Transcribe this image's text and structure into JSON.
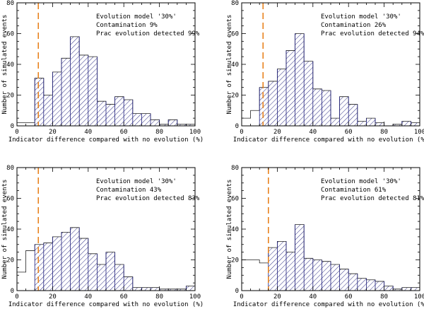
{
  "figure": {
    "xlabel": "Indicator difference compared with no evolution (%)",
    "ylabel": "Number of simulated events"
  },
  "chart_data": [
    {
      "type": "histogram",
      "annotation": [
        "Evolution model '30%'",
        "Contamination 9%",
        "Prac evolution detected 99%"
      ],
      "xlim": [
        0,
        100
      ],
      "ylim": [
        0,
        80
      ],
      "xticks": [
        0,
        20,
        40,
        60,
        80,
        100
      ],
      "yticks": [
        0,
        20,
        40,
        60,
        80
      ],
      "threshold_x": 12,
      "bin_width": 5,
      "bins": [
        0,
        5,
        10,
        15,
        20,
        25,
        30,
        35,
        40,
        45,
        50,
        55,
        60,
        65,
        70,
        75,
        80,
        85,
        90,
        95
      ],
      "values": [
        2,
        2,
        31,
        20,
        35,
        44,
        58,
        46,
        45,
        16,
        14,
        19,
        17,
        8,
        8,
        4,
        1,
        4,
        1,
        1
      ],
      "hatched_from_bin": 2,
      "grid": false
    },
    {
      "type": "histogram",
      "annotation": [
        "Evolution model '30%'",
        "Contamination 26%",
        "Prac evolution detected 94%"
      ],
      "xlim": [
        0,
        100
      ],
      "ylim": [
        0,
        80
      ],
      "xticks": [
        0,
        20,
        40,
        60,
        80,
        100
      ],
      "yticks": [
        0,
        20,
        40,
        60,
        80
      ],
      "threshold_x": 12,
      "bin_width": 5,
      "bins": [
        0,
        5,
        10,
        15,
        20,
        25,
        30,
        35,
        40,
        45,
        50,
        55,
        60,
        65,
        70,
        75,
        80,
        85,
        90,
        95
      ],
      "values": [
        5,
        10,
        25,
        29,
        37,
        49,
        60,
        42,
        24,
        23,
        5,
        19,
        14,
        3,
        5,
        2,
        0,
        1,
        3,
        2
      ],
      "hatched_from_bin": 2,
      "grid": false
    },
    {
      "type": "histogram",
      "annotation": [
        "Evolution model '30%'",
        "Contamination 43%",
        "Prac evolution detected 83%"
      ],
      "xlim": [
        0,
        100
      ],
      "ylim": [
        0,
        80
      ],
      "xticks": [
        0,
        20,
        40,
        60,
        80,
        100
      ],
      "yticks": [
        0,
        20,
        40,
        60,
        80
      ],
      "threshold_x": 12,
      "bin_width": 5,
      "bins": [
        0,
        5,
        10,
        15,
        20,
        25,
        30,
        35,
        40,
        45,
        50,
        55,
        60,
        65,
        70,
        75,
        80,
        85,
        90,
        95
      ],
      "values": [
        12,
        26,
        30,
        31,
        35,
        38,
        41,
        34,
        24,
        17,
        25,
        17,
        9,
        2,
        2,
        2,
        1,
        1,
        1,
        3
      ],
      "hatched_from_bin": 2,
      "grid": false
    },
    {
      "type": "histogram",
      "annotation": [
        "Evolution model '30%'",
        "Contamination 61%",
        "Prac evolution detected 81%"
      ],
      "xlim": [
        0,
        100
      ],
      "ylim": [
        0,
        80
      ],
      "xticks": [
        0,
        20,
        40,
        60,
        80,
        100
      ],
      "yticks": [
        0,
        20,
        40,
        60,
        80
      ],
      "threshold_x": 15,
      "bin_width": 5,
      "bins": [
        0,
        5,
        10,
        15,
        20,
        25,
        30,
        35,
        40,
        45,
        50,
        55,
        60,
        65,
        70,
        75,
        80,
        85,
        90,
        95
      ],
      "values": [
        20,
        20,
        18,
        28,
        32,
        25,
        43,
        21,
        20,
        19,
        17,
        14,
        11,
        8,
        7,
        6,
        3,
        1,
        2,
        2
      ],
      "hatched_from_bin": 3,
      "grid": false
    }
  ]
}
